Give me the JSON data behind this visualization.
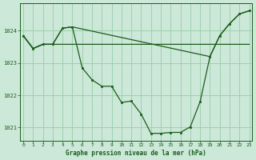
{
  "bg_color": "#cce8d8",
  "grid_color": "#99ccaa",
  "line_color": "#1a5c1a",
  "marker_color": "#1a5c1a",
  "title": "Graphe pression niveau de la mer (hPa)",
  "ylim": [
    1020.6,
    1024.85
  ],
  "xlim": [
    -0.3,
    23.3
  ],
  "yticks": [
    1021,
    1022,
    1023,
    1024
  ],
  "xticks": [
    0,
    1,
    2,
    3,
    4,
    5,
    6,
    7,
    8,
    9,
    10,
    11,
    12,
    13,
    14,
    15,
    16,
    17,
    18,
    19,
    20,
    21,
    22,
    23
  ],
  "main_x": [
    0,
    1,
    2,
    3,
    4,
    5,
    6,
    7,
    8,
    9,
    10,
    11,
    12,
    13,
    14,
    15,
    16,
    17,
    18,
    19,
    20,
    21,
    22,
    23
  ],
  "main_y": [
    1023.85,
    1023.45,
    1023.58,
    1023.58,
    1024.08,
    1024.12,
    1022.85,
    1022.48,
    1022.28,
    1022.28,
    1021.78,
    1021.82,
    1021.42,
    1020.82,
    1020.82,
    1020.85,
    1020.85,
    1021.02,
    1021.8,
    1023.2,
    1023.85,
    1024.22,
    1024.52,
    1024.62
  ],
  "flat_x": [
    0,
    1,
    2,
    3,
    4,
    5,
    6,
    7,
    8,
    9,
    10,
    11,
    12,
    13,
    14,
    15,
    16,
    17,
    18,
    19,
    20,
    21,
    22,
    23
  ],
  "flat_y": [
    1023.85,
    1023.45,
    1023.58,
    1023.58,
    1023.58,
    1023.58,
    1023.58,
    1023.58,
    1023.58,
    1023.58,
    1023.58,
    1023.58,
    1023.58,
    1023.58,
    1023.58,
    1023.58,
    1023.58,
    1023.58,
    1023.58,
    1023.58,
    1023.58,
    1023.58,
    1023.58,
    1023.58
  ],
  "upper_x": [
    0,
    1,
    2,
    3,
    4,
    5,
    19,
    20,
    21,
    22,
    23
  ],
  "upper_y": [
    1023.85,
    1023.45,
    1023.58,
    1023.58,
    1024.08,
    1024.12,
    1023.2,
    1023.85,
    1024.22,
    1024.52,
    1024.62
  ]
}
